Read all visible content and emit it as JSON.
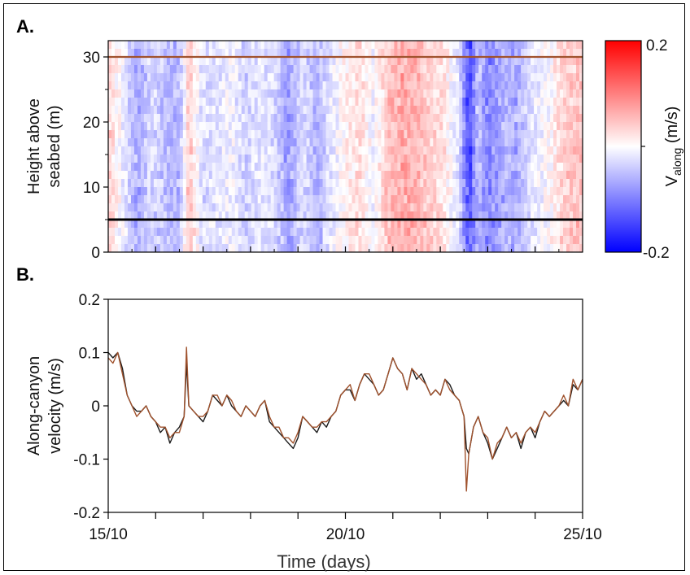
{
  "panel_a": {
    "label": "A.",
    "y_axis_title_line1": "Height above",
    "y_axis_title_line2": "seabed (m)",
    "y_ticks": [
      "0",
      "10",
      "20",
      "30"
    ],
    "colorbar": {
      "label_main": "V",
      "label_sub": "along",
      "label_unit": " (m/s)",
      "max_label": "0.2",
      "min_label": "-0.2",
      "colors": [
        "#0000ff",
        "#ffffff",
        "#ff0000"
      ]
    },
    "reference_lines": [
      {
        "height_m": 30,
        "color": "#a0522d"
      },
      {
        "height_m": 5,
        "color": "#000000"
      }
    ]
  },
  "panel_b": {
    "label": "B.",
    "y_axis_title_line1": "Along-canyon",
    "y_axis_title_line2": "velocity (m/s)",
    "y_ticks": [
      "-0.2",
      "-0.1",
      "0",
      "0.1",
      "0.2"
    ],
    "x_ticks": [
      "15/10",
      "20/10",
      "25/10"
    ],
    "x_axis_title": "Time (days)"
  },
  "chart_data": [
    {
      "type": "heatmap",
      "title": "",
      "xlabel": "",
      "ylabel": "Height above seabed (m)",
      "xlim": [
        15,
        25
      ],
      "ylim": [
        0,
        32.5
      ],
      "colorbar_label": "Valong (m/s)",
      "clim": [
        -0.2,
        0.2
      ],
      "column_velocity_profile": {
        "day": [
          15.0,
          15.3,
          15.6,
          15.9,
          16.2,
          16.5,
          16.7,
          17.0,
          17.3,
          17.6,
          17.9,
          18.2,
          18.5,
          18.8,
          19.1,
          19.4,
          19.7,
          20.0,
          20.3,
          20.6,
          20.9,
          21.2,
          21.5,
          21.8,
          22.1,
          22.4,
          22.6,
          22.8,
          23.0,
          23.2,
          23.4,
          23.6,
          23.8,
          24.0,
          24.3,
          24.6,
          25.0
        ],
        "velocity_m_s": [
          0.04,
          -0.01,
          -0.07,
          -0.03,
          -0.05,
          -0.06,
          0.05,
          -0.03,
          -0.02,
          -0.01,
          -0.04,
          -0.02,
          -0.03,
          -0.08,
          -0.03,
          -0.06,
          -0.02,
          0.01,
          0.03,
          -0.01,
          0.05,
          0.07,
          0.06,
          0.04,
          0.02,
          -0.03,
          -0.15,
          -0.05,
          -0.1,
          -0.08,
          -0.06,
          -0.07,
          -0.04,
          -0.02,
          0.0,
          0.04,
          0.05
        ]
      },
      "horizontal_lines_m": [
        30,
        5
      ]
    },
    {
      "type": "line",
      "title": "",
      "xlabel": "Time (days)",
      "ylabel": "Along-canyon velocity (m/s)",
      "xlim": [
        15,
        25
      ],
      "ylim": [
        -0.2,
        0.2
      ],
      "x_tick_labels": [
        "15/10",
        "20/10",
        "25/10"
      ],
      "y_tick_labels": [
        "-0.2",
        "-0.1",
        "0",
        "0.1",
        "0.2"
      ],
      "x": [
        15.0,
        15.1,
        15.2,
        15.3,
        15.4,
        15.5,
        15.6,
        15.7,
        15.8,
        15.9,
        16.0,
        16.1,
        16.2,
        16.3,
        16.4,
        16.5,
        16.6,
        16.65,
        16.7,
        16.8,
        16.9,
        17.0,
        17.1,
        17.2,
        17.3,
        17.4,
        17.5,
        17.6,
        17.7,
        17.8,
        17.9,
        18.0,
        18.1,
        18.2,
        18.3,
        18.4,
        18.5,
        18.6,
        18.7,
        18.8,
        18.9,
        19.0,
        19.1,
        19.2,
        19.3,
        19.4,
        19.5,
        19.6,
        19.7,
        19.8,
        19.9,
        20.0,
        20.1,
        20.2,
        20.3,
        20.4,
        20.5,
        20.6,
        20.7,
        20.8,
        20.9,
        21.0,
        21.1,
        21.2,
        21.3,
        21.4,
        21.5,
        21.6,
        21.7,
        21.8,
        21.9,
        22.0,
        22.1,
        22.2,
        22.3,
        22.4,
        22.5,
        22.55,
        22.6,
        22.7,
        22.8,
        22.9,
        23.0,
        23.1,
        23.2,
        23.3,
        23.4,
        23.5,
        23.6,
        23.7,
        23.8,
        23.9,
        24.0,
        24.1,
        24.2,
        24.3,
        24.4,
        24.5,
        24.6,
        24.7,
        24.8,
        24.9,
        25.0
      ],
      "series": [
        {
          "color": "#1a1a1a",
          "values": [
            0.1,
            0.09,
            0.1,
            0.07,
            0.02,
            0.0,
            -0.01,
            -0.01,
            0.0,
            -0.02,
            -0.03,
            -0.05,
            -0.04,
            -0.07,
            -0.05,
            -0.04,
            -0.02,
            0.08,
            0.0,
            -0.01,
            -0.02,
            -0.03,
            -0.01,
            0.02,
            0.01,
            0.0,
            0.02,
            0.0,
            -0.01,
            -0.02,
            0.0,
            -0.01,
            -0.02,
            0.0,
            0.01,
            -0.03,
            -0.04,
            -0.05,
            -0.06,
            -0.07,
            -0.08,
            -0.06,
            -0.02,
            -0.03,
            -0.04,
            -0.05,
            -0.03,
            -0.04,
            -0.02,
            -0.01,
            0.02,
            0.03,
            0.03,
            0.01,
            0.04,
            0.06,
            0.05,
            0.04,
            0.02,
            0.03,
            0.06,
            0.09,
            0.07,
            0.06,
            0.03,
            0.07,
            0.05,
            0.06,
            0.04,
            0.02,
            0.03,
            0.02,
            0.05,
            0.04,
            0.02,
            0.01,
            -0.02,
            -0.08,
            -0.09,
            -0.04,
            -0.02,
            -0.05,
            -0.07,
            -0.1,
            -0.08,
            -0.06,
            -0.04,
            -0.06,
            -0.05,
            -0.08,
            -0.05,
            -0.04,
            -0.06,
            -0.03,
            -0.01,
            -0.02,
            -0.01,
            0.0,
            0.01,
            0.0,
            0.04,
            0.03,
            0.05
          ]
        },
        {
          "color": "#a0522d",
          "values": [
            0.09,
            0.08,
            0.1,
            0.06,
            0.02,
            0.0,
            -0.02,
            -0.01,
            0.0,
            -0.02,
            -0.03,
            -0.04,
            -0.04,
            -0.06,
            -0.05,
            -0.05,
            -0.02,
            0.11,
            0.0,
            -0.01,
            -0.02,
            -0.02,
            -0.01,
            0.02,
            0.02,
            0.0,
            0.02,
            0.01,
            -0.01,
            -0.02,
            0.0,
            -0.01,
            -0.02,
            0.0,
            0.01,
            -0.02,
            -0.04,
            -0.04,
            -0.06,
            -0.06,
            -0.07,
            -0.05,
            -0.02,
            -0.03,
            -0.04,
            -0.04,
            -0.03,
            -0.03,
            -0.02,
            -0.01,
            0.02,
            0.03,
            0.04,
            0.01,
            0.04,
            0.06,
            0.06,
            0.04,
            0.02,
            0.03,
            0.06,
            0.09,
            0.07,
            0.06,
            0.03,
            0.07,
            0.06,
            0.05,
            0.04,
            0.02,
            0.03,
            0.02,
            0.05,
            0.03,
            0.02,
            0.01,
            -0.02,
            -0.16,
            -0.09,
            -0.04,
            -0.02,
            -0.05,
            -0.06,
            -0.1,
            -0.07,
            -0.06,
            -0.04,
            -0.06,
            -0.05,
            -0.07,
            -0.05,
            -0.04,
            -0.05,
            -0.03,
            -0.01,
            -0.02,
            -0.01,
            0.0,
            0.02,
            0.0,
            0.05,
            0.03,
            0.05
          ]
        }
      ]
    }
  ]
}
